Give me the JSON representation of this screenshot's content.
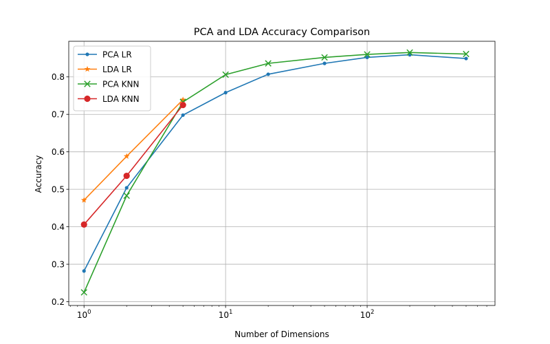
{
  "chart_data": {
    "type": "line",
    "title": "PCA and LDA Accuracy Comparison",
    "xlabel": "Number of Dimensions",
    "ylabel": "Accuracy",
    "xscale": "log",
    "xlim": [
      0.78,
      800
    ],
    "ylim": [
      0.19,
      0.895
    ],
    "x_major_ticks": [
      {
        "value": 1,
        "base": "10",
        "exp": "0"
      },
      {
        "value": 10,
        "base": "10",
        "exp": "1"
      },
      {
        "value": 100,
        "base": "10",
        "exp": "2"
      }
    ],
    "y_ticks": [
      {
        "value": 0.2,
        "label": "0.2"
      },
      {
        "value": 0.3,
        "label": "0.3"
      },
      {
        "value": 0.4,
        "label": "0.4"
      },
      {
        "value": 0.5,
        "label": "0.5"
      },
      {
        "value": 0.6,
        "label": "0.6"
      },
      {
        "value": 0.7,
        "label": "0.7"
      },
      {
        "value": 0.8,
        "label": "0.8"
      }
    ],
    "grid": true,
    "legend_position": "top-left",
    "series": [
      {
        "name": "PCA LR",
        "color": "#1f77b4",
        "marker": "point",
        "x": [
          1,
          2,
          5,
          10,
          20,
          50,
          100,
          200,
          500
        ],
        "y": [
          0.282,
          0.504,
          0.698,
          0.758,
          0.807,
          0.836,
          0.852,
          0.859,
          0.849
        ]
      },
      {
        "name": "LDA LR",
        "color": "#ff7f0e",
        "marker": "star",
        "x": [
          1,
          2,
          5
        ],
        "y": [
          0.471,
          0.588,
          0.739
        ]
      },
      {
        "name": "PCA KNN",
        "color": "#2ca02c",
        "marker": "x",
        "x": [
          1,
          2,
          5,
          10,
          20,
          50,
          100,
          200,
          500
        ],
        "y": [
          0.225,
          0.483,
          0.733,
          0.806,
          0.836,
          0.852,
          0.86,
          0.865,
          0.861
        ]
      },
      {
        "name": "LDA KNN",
        "color": "#d62728",
        "marker": "circle",
        "x": [
          1,
          2,
          5
        ],
        "y": [
          0.406,
          0.536,
          0.725
        ]
      }
    ]
  }
}
